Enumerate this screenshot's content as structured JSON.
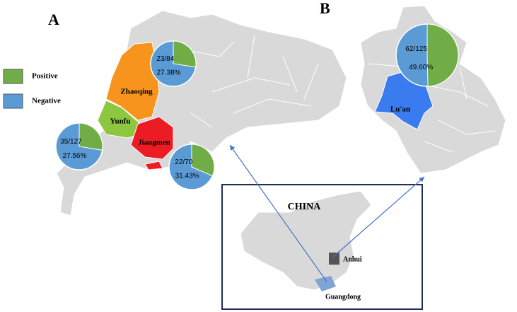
{
  "panels": {
    "a": "A",
    "b": "B"
  },
  "legend": [
    {
      "label": "Positive",
      "color": "#70ad47"
    },
    {
      "label": "Negative",
      "color": "#5b9bd5"
    }
  ],
  "regions": [
    {
      "name": "Zhaoqing",
      "color": "#f7941d"
    },
    {
      "name": "Yunfu",
      "color": "#8dc63f"
    },
    {
      "name": "Jiangmen",
      "color": "#ed1c24"
    },
    {
      "name": "Lu'an",
      "color": "#3a7bf0"
    }
  ],
  "pies": [
    {
      "count_label": "23/84",
      "percent": 27.38,
      "percent_label": "27.38%"
    },
    {
      "count_label": "35/127",
      "percent": 27.56,
      "percent_label": "27.56%"
    },
    {
      "count_label": "22/70",
      "percent": 31.43,
      "percent_label": "31.43%"
    },
    {
      "count_label": "62/125",
      "percent": 49.6,
      "percent_label": "49.60%"
    }
  ],
  "inset": {
    "title": "CHINA",
    "labels": [
      "Anhui",
      "Guangdong"
    ]
  }
}
